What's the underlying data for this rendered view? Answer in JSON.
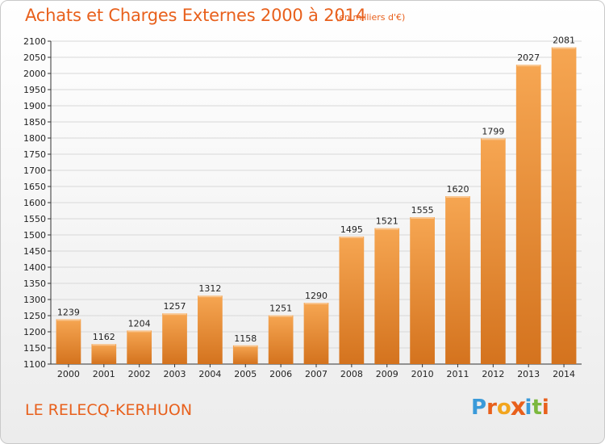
{
  "header": {
    "title": "Achats et Charges Externes 2000 à 2014",
    "subtitle": "(en milliers d'€)"
  },
  "footer": {
    "location": "LE RELECQ-KERHUON",
    "logo_letters": [
      "P",
      "r",
      "o",
      "x",
      "i",
      "t",
      "i"
    ],
    "logo_colors": [
      "#3a9ad9",
      "#e8601c",
      "#f2a51e",
      "#e8601c",
      "#3a9ad9",
      "#7cb83e",
      "#e8601c"
    ]
  },
  "colors": {
    "title": "#e8601c",
    "bar_light": "#f6a652",
    "bar_dark": "#d4731e",
    "grid": "#d8d8d8",
    "axis": "#333333"
  },
  "chart_data": {
    "type": "bar",
    "title": "Achats et Charges Externes 2000 à 2014",
    "subtitle": "(en milliers d'€)",
    "xlabel": "",
    "ylabel": "",
    "categories": [
      "2000",
      "2001",
      "2002",
      "2003",
      "2004",
      "2005",
      "2006",
      "2007",
      "2008",
      "2009",
      "2010",
      "2011",
      "2012",
      "2013",
      "2014"
    ],
    "values": [
      1239,
      1162,
      1204,
      1257,
      1312,
      1158,
      1251,
      1290,
      1495,
      1521,
      1555,
      1620,
      1799,
      2027,
      2081
    ],
    "ylim": [
      1100,
      2100
    ],
    "yticks": [
      1100,
      1150,
      1200,
      1250,
      1300,
      1350,
      1400,
      1450,
      1500,
      1550,
      1600,
      1650,
      1700,
      1750,
      1800,
      1850,
      1900,
      1950,
      2000,
      2050,
      2100
    ],
    "grid": true,
    "data_labels": true
  }
}
